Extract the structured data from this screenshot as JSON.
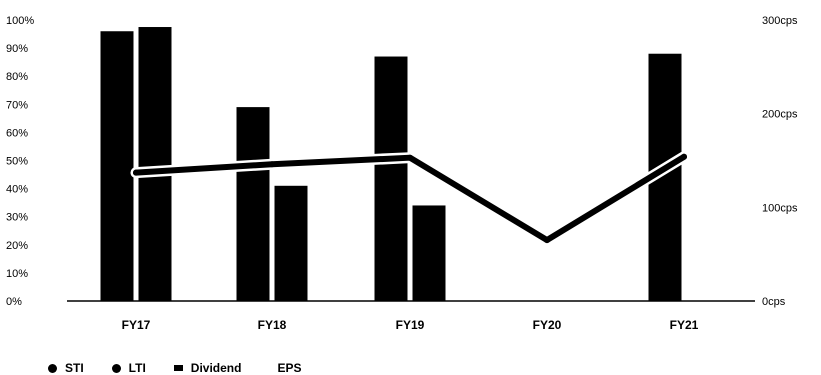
{
  "chart_data": {
    "type": "bar",
    "categories": [
      "FY17",
      "FY18",
      "FY19",
      "FY20",
      "FY21"
    ],
    "left_axis": {
      "ticks": [
        "0%",
        "10%",
        "20%",
        "30%",
        "40%",
        "50%",
        "60%",
        "70%",
        "80%",
        "90%",
        "100%"
      ],
      "ylim": [
        0,
        100
      ]
    },
    "right_axis": {
      "ticks": [
        "0cps",
        "100cps",
        "200cps",
        "300cps"
      ],
      "ylim": [
        0,
        300
      ]
    },
    "series": [
      {
        "name": "STI",
        "kind": "bar",
        "axis": "left",
        "values": [
          96,
          69,
          87,
          0,
          88
        ]
      },
      {
        "name": "LTI",
        "kind": "bar",
        "axis": "left",
        "values": [
          97.5,
          41,
          34,
          0,
          0
        ]
      },
      {
        "name": "EPS",
        "kind": "line",
        "axis": "right",
        "values": [
          137,
          146,
          153,
          65,
          154
        ]
      }
    ],
    "legend": [
      {
        "label": "STI",
        "marker": "dot"
      },
      {
        "label": "LTI",
        "marker": "dot"
      },
      {
        "label": "Dividend",
        "marker": "square"
      },
      {
        "label": "EPS",
        "marker": "none"
      }
    ],
    "legend_position": "bottom-left",
    "grid": false,
    "colors": {
      "bar": "#000000",
      "line": "#000000",
      "axis": "#000000"
    }
  }
}
